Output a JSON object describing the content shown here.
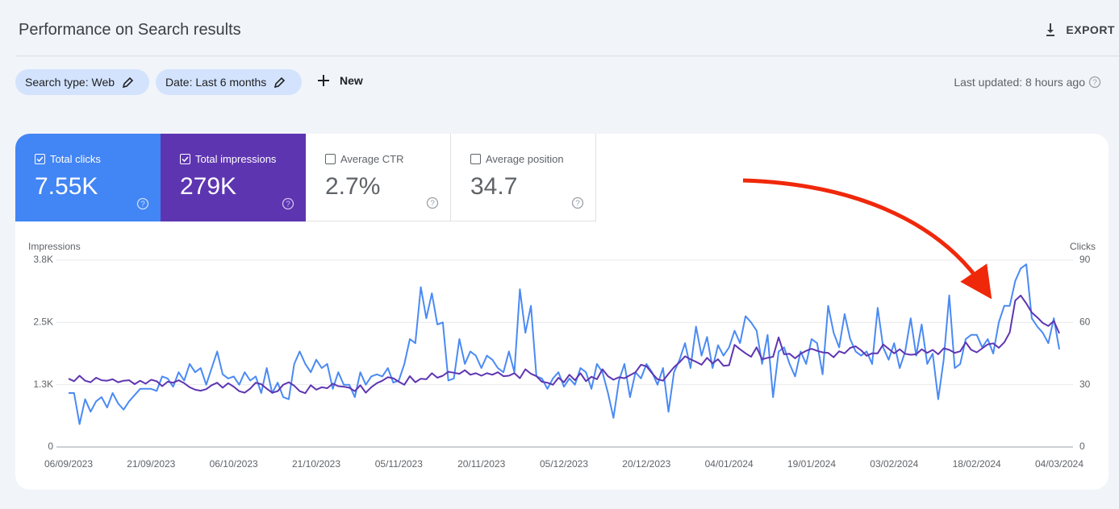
{
  "header": {
    "title": "Performance on Search results",
    "export": "EXPORT"
  },
  "filters": {
    "chips": [
      "Search type: Web",
      "Date: Last 6 months"
    ],
    "new": "New",
    "last_updated": "Last updated: 8 hours ago"
  },
  "metrics": [
    {
      "value": "7.55K",
      "checked": true
    },
    {
      "value": "279K",
      "checked": true
    },
    {
      "label": "Average CTR",
      "value": "2.7%",
      "checked": false
    },
    {
      "label": "Average position",
      "value": "34.7",
      "checked": false
    }
  ],
  "chart_data": {
    "type": "line",
    "ylabel": "Impressions",
    "y2label": "Clicks",
    "categories": [
      "06/09/2023",
      null,
      null,
      null,
      null,
      null,
      null,
      null,
      null,
      null,
      null,
      null,
      null,
      null,
      null,
      "21/09/2023",
      null,
      null,
      null,
      null,
      null,
      null,
      null,
      null,
      null,
      null,
      null,
      null,
      null,
      null,
      "06/10/2023",
      null,
      null,
      null,
      null,
      null,
      null,
      null,
      null,
      null,
      null,
      null,
      null,
      null,
      null,
      "21/10/2023",
      null,
      null,
      null,
      null,
      null,
      null,
      null,
      null,
      null,
      null,
      null,
      null,
      null,
      null,
      "05/11/2023",
      null,
      null,
      null,
      null,
      null,
      null,
      null,
      null,
      null,
      null,
      null,
      null,
      null,
      null,
      "20/11/2023",
      null,
      null,
      null,
      null,
      null,
      null,
      null,
      null,
      null,
      null,
      null,
      null,
      null,
      null,
      "05/12/2023",
      null,
      null,
      null,
      null,
      null,
      null,
      null,
      null,
      null,
      null,
      null,
      null,
      null,
      null,
      "20/12/2023",
      null,
      null,
      null,
      null,
      null,
      null,
      null,
      null,
      null,
      null,
      null,
      null,
      null,
      null,
      "04/01/2024",
      null,
      null,
      null,
      null,
      null,
      null,
      null,
      null,
      null,
      null,
      null,
      null,
      null,
      null,
      "19/01/2024",
      null,
      null,
      null,
      null,
      null,
      null,
      null,
      null,
      null,
      null,
      null,
      null,
      null,
      null,
      "03/02/2024",
      null,
      null,
      null,
      null,
      null,
      null,
      null,
      null,
      null,
      null,
      null,
      null,
      null,
      null,
      "18/02/2024",
      null,
      null,
      null,
      null,
      null,
      null,
      null,
      null,
      null,
      null,
      null,
      null,
      null,
      null,
      "04/03/2024"
    ],
    "series": [
      {
        "name": "Total clicks",
        "color": "#4a8af4",
        "axis": "y2",
        "values": [
          26,
          26,
          11,
          23,
          17,
          22,
          24,
          19,
          26,
          21,
          18,
          22,
          25,
          28,
          28,
          28,
          27,
          34,
          33,
          29,
          36,
          32,
          40,
          36,
          38,
          30,
          38,
          46,
          35,
          33,
          34,
          30,
          36,
          32,
          34,
          26,
          38,
          26,
          31,
          24,
          23,
          40,
          46,
          40,
          36,
          42,
          38,
          40,
          28,
          36,
          30,
          30,
          24,
          36,
          30,
          34,
          35,
          34,
          38,
          31,
          32,
          40,
          52,
          50,
          77,
          62,
          74,
          59,
          60,
          32,
          33,
          52,
          40,
          46,
          44,
          38,
          44,
          42,
          38,
          36,
          46,
          36,
          76,
          55,
          68,
          34,
          33,
          28,
          33,
          36,
          29,
          33,
          30,
          38,
          36,
          28,
          40,
          36,
          26,
          14,
          32,
          40,
          24,
          36,
          33,
          40,
          36,
          30,
          38,
          17,
          36,
          42,
          50,
          38,
          58,
          44,
          53,
          38,
          49,
          44,
          48,
          56,
          50,
          63,
          60,
          56,
          40,
          54,
          24,
          46,
          48,
          40,
          34,
          46,
          40,
          52,
          50,
          35,
          68,
          55,
          48,
          64,
          52,
          46,
          44,
          46,
          40,
          67,
          48,
          42,
          50,
          38,
          46,
          62,
          44,
          59,
          40,
          45,
          23,
          42,
          73,
          38,
          40,
          52,
          54,
          54,
          48,
          52,
          45,
          60,
          68,
          68,
          80,
          86,
          88,
          62,
          58,
          55,
          50,
          62,
          47
        ]
      },
      {
        "name": "Total impressions",
        "color": "#5e35b1",
        "axis": "y",
        "values": [
          1370,
          1320,
          1430,
          1330,
          1300,
          1390,
          1340,
          1330,
          1360,
          1300,
          1330,
          1340,
          1260,
          1330,
          1270,
          1350,
          1320,
          1220,
          1310,
          1290,
          1340,
          1280,
          1200,
          1150,
          1130,
          1160,
          1240,
          1290,
          1190,
          1280,
          1210,
          1120,
          1090,
          1170,
          1290,
          1260,
          1170,
          1090,
          1120,
          1250,
          1300,
          1230,
          1120,
          1080,
          1240,
          1150,
          1200,
          1180,
          1270,
          1220,
          1210,
          1190,
          1120,
          1240,
          1090,
          1200,
          1280,
          1330,
          1400,
          1380,
          1310,
          1250,
          1420,
          1300,
          1370,
          1360,
          1480,
          1390,
          1430,
          1510,
          1490,
          1470,
          1540,
          1450,
          1480,
          1430,
          1480,
          1450,
          1500,
          1420,
          1430,
          1480,
          1380,
          1560,
          1470,
          1420,
          1310,
          1290,
          1250,
          1390,
          1300,
          1450,
          1340,
          1480,
          1320,
          1410,
          1360,
          1560,
          1420,
          1350,
          1400,
          1380,
          1440,
          1500,
          1650,
          1620,
          1480,
          1360,
          1330,
          1470,
          1600,
          1700,
          1820,
          1760,
          1710,
          1650,
          1790,
          1680,
          1760,
          1630,
          1640,
          2050,
          1960,
          1880,
          1810,
          2000,
          1760,
          1790,
          1810,
          2200,
          1860,
          1870,
          1780,
          1870,
          1930,
          1970,
          1930,
          1900,
          1890,
          1800,
          1920,
          1880,
          1990,
          2020,
          1940,
          1830,
          1880,
          1880,
          2060,
          1970,
          1880,
          1960,
          1870,
          1850,
          1860,
          1960,
          1890,
          1950,
          1860,
          1980,
          1950,
          1890,
          1920,
          2100,
          1950,
          1900,
          1980,
          2060,
          2080,
          1990,
          2100,
          2300,
          2940,
          3040,
          2880,
          2700,
          2600,
          2490,
          2430,
          2530,
          2280
        ]
      }
    ],
    "ylim": [
      0,
      3750
    ],
    "yticks": [
      0,
      {
        "value": 1250,
        "label": "1.3K"
      },
      {
        "value": 2500,
        "label": "2.5K"
      },
      {
        "value": 3750,
        "label": "3.8K"
      }
    ],
    "y2lim": [
      0,
      90
    ],
    "y2ticks": [
      0,
      30,
      60,
      90
    ],
    "grid": true
  }
}
